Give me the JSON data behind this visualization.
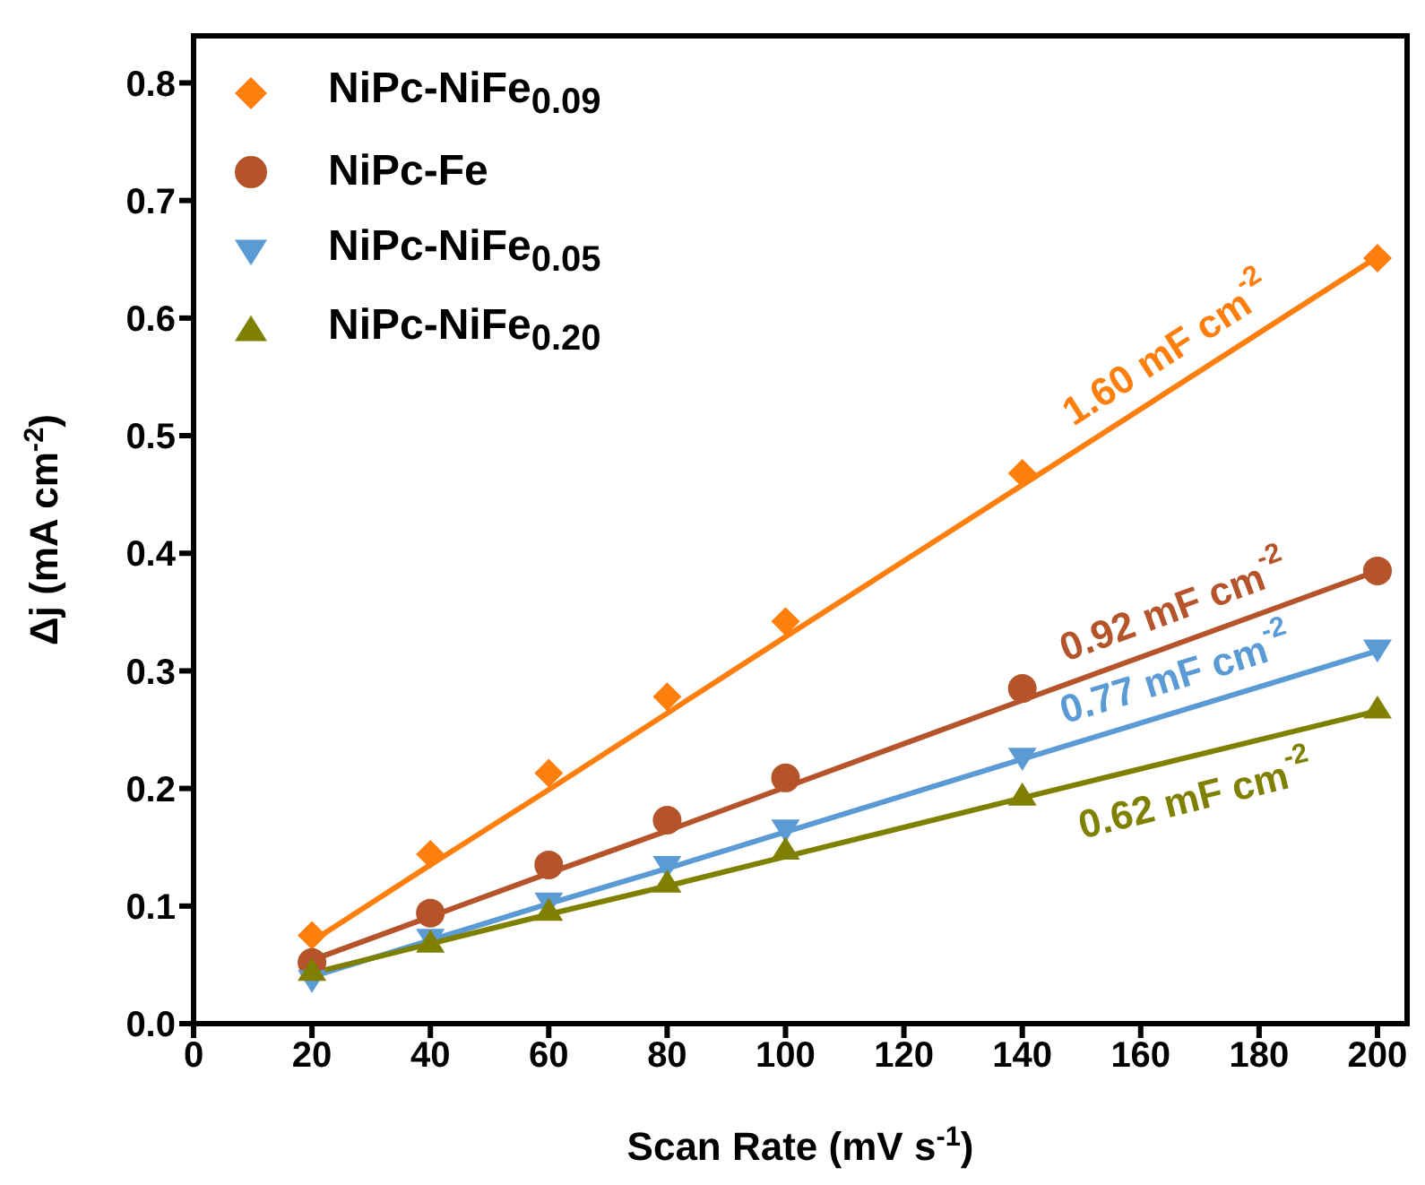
{
  "chart_data": {
    "type": "scatter",
    "xlabel": "Scan Rate (mV s$^{-1}$)",
    "ylabel": "Δj (mA cm$^{-2}$)",
    "x": [
      20,
      40,
      60,
      80,
      100,
      140,
      200
    ],
    "series": [
      {
        "name": "NiPc-NiFe$_{0.09}$",
        "color": "#ff7f0e",
        "marker": "diamond",
        "values": [
          0.075,
          0.144,
          0.213,
          0.278,
          0.342,
          0.468,
          0.651
        ]
      },
      {
        "name": "NiPc-Fe",
        "color": "#b5542a",
        "marker": "circle",
        "values": [
          0.052,
          0.094,
          0.135,
          0.173,
          0.209,
          0.285,
          0.385
        ]
      },
      {
        "name": "NiPc-NiFe$_{0.05}$",
        "color": "#5b9bd5",
        "marker": "triangle-down",
        "values": [
          0.037,
          0.072,
          0.103,
          0.134,
          0.165,
          0.226,
          0.318
        ]
      },
      {
        "name": "NiPc-NiFe$_{0.20}$",
        "color": "#808000",
        "marker": "triangle",
        "values": [
          0.045,
          0.069,
          0.096,
          0.12,
          0.148,
          0.194,
          0.268
        ]
      },
      {
        "type": "line",
        "color": "#ff7f0e",
        "values": [
          0.07,
          0.135,
          0.199,
          0.264,
          0.329,
          0.458,
          0.652
        ]
      },
      {
        "type": "line",
        "color": "#b5542a",
        "values": [
          0.054,
          0.091,
          0.128,
          0.164,
          0.201,
          0.275,
          0.385
        ]
      },
      {
        "type": "line",
        "color": "#5b9bd5",
        "values": [
          0.04,
          0.071,
          0.102,
          0.132,
          0.163,
          0.225,
          0.317
        ]
      },
      {
        "type": "line",
        "color": "#808000",
        "values": [
          0.043,
          0.068,
          0.093,
          0.117,
          0.142,
          0.192,
          0.266
        ]
      }
    ],
    "annotations": [
      "1.60 mF cm$^{-2}$",
      "0.92 mF cm$^{-2}$",
      "0.77 mF cm$^{-2}$",
      "0.62 mF cm$^{-2}$"
    ],
    "xlim": [
      0,
      205
    ],
    "xticks": [
      0,
      20,
      40,
      60,
      80,
      100,
      120,
      140,
      160,
      180,
      200
    ],
    "ylim": [
      0,
      0.84
    ],
    "yticks": [
      {
        "value": 0,
        "label": "0.0"
      },
      0.1,
      0.2,
      0.3,
      0.4,
      0.5,
      0.6,
      0.7,
      0.8
    ],
    "grid": false,
    "legend": "top left"
  }
}
